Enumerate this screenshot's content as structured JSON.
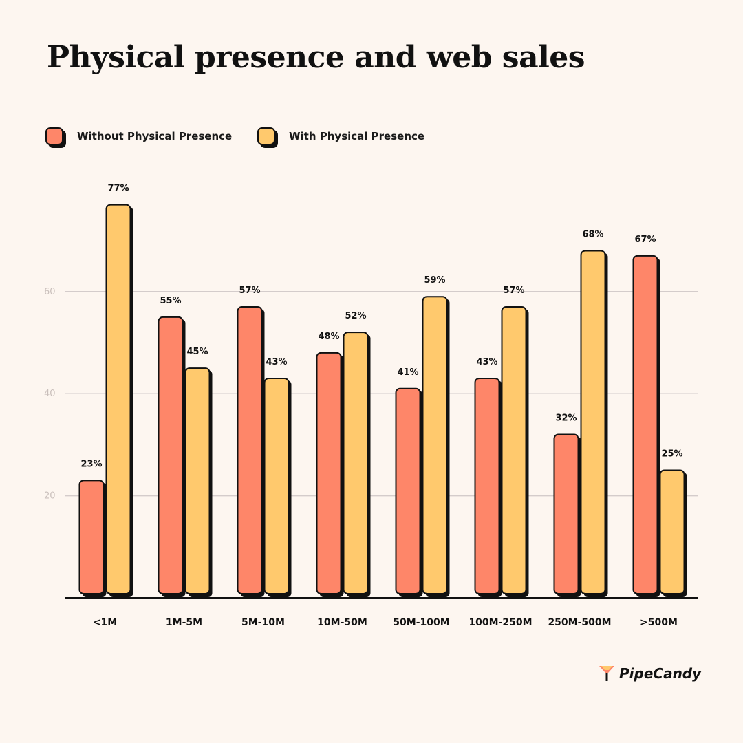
{
  "colors": {
    "without": "#fe8669",
    "with": "#ffc96d",
    "background": "#fdf6f0",
    "grid": "#d4cccb",
    "outline": "#111111"
  },
  "chart_data": {
    "type": "bar",
    "title": "Physical presence and web sales",
    "categories": [
      "<1M",
      "1M-5M",
      "5M-10M",
      "10M-50M",
      "50M-100M",
      "100M-250M",
      "250M-500M",
      ">500M"
    ],
    "series": [
      {
        "name": "Without Physical Presence",
        "values": [
          23,
          55,
          57,
          48,
          41,
          43,
          32,
          67
        ],
        "labels": [
          "23%",
          "55%",
          "57%",
          "48%",
          "41%",
          "43%",
          "32%",
          "67%"
        ]
      },
      {
        "name": "With Physical Presence",
        "values": [
          77,
          45,
          43,
          52,
          59,
          57,
          68,
          25
        ],
        "labels": [
          "77%",
          "45%",
          "43%",
          "52%",
          "59%",
          "57%",
          "68%",
          "25%"
        ]
      }
    ],
    "yticks": [
      "20",
      "40",
      "60"
    ],
    "ytick_values": [
      20,
      40,
      60
    ],
    "ylim": [
      0,
      80
    ],
    "grid": true,
    "legend_position": "top-left"
  },
  "brand": {
    "name": "PipeCandy"
  }
}
